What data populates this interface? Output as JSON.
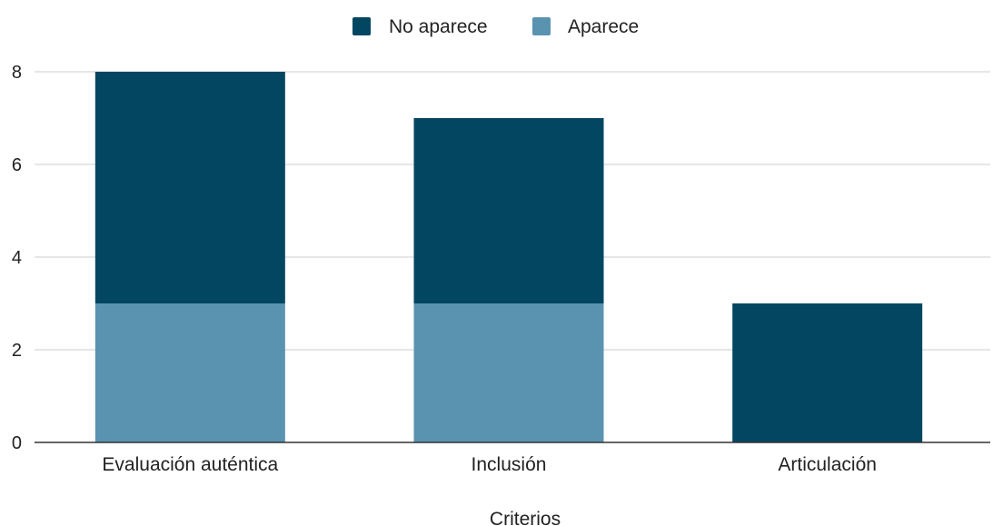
{
  "chart_data": {
    "type": "bar",
    "stacked": true,
    "categories": [
      "Evaluación auténtica",
      "Inclusión",
      "Articulación"
    ],
    "series": [
      {
        "name": "Aparece",
        "values": [
          3,
          3,
          0
        ],
        "color": "#5a93b0"
      },
      {
        "name": "No aparece",
        "values": [
          5,
          4,
          3
        ],
        "color": "#034661"
      }
    ],
    "legend_order": [
      "No aparece",
      "Aparece"
    ],
    "legend_position": "top-center",
    "xlabel": "Criterios",
    "ylabel": "",
    "ylim": [
      0,
      8
    ],
    "yticks": [
      "0",
      "2",
      "4",
      "6",
      "8"
    ],
    "grid": true,
    "gridline_color": "#cccccc",
    "axis_color": "#333333"
  }
}
